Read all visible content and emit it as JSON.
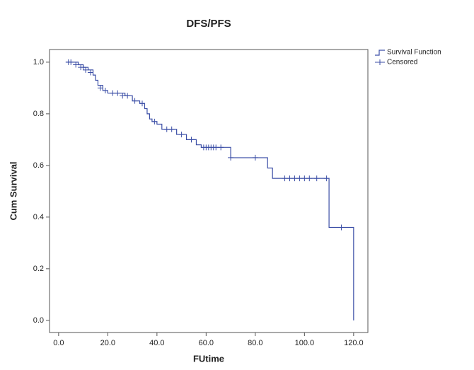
{
  "chart_data": {
    "type": "step",
    "title": "DFS/PFS",
    "x_label": "FUtime",
    "y_label": "Cum Survival",
    "xlim": [
      -3.7,
      125.8
    ],
    "ylim": [
      -0.047,
      1.049
    ],
    "xticks": [
      {
        "value": 0,
        "label": "0.0"
      },
      {
        "value": 20,
        "label": "20.0"
      },
      {
        "value": 40,
        "label": "40.0"
      },
      {
        "value": 60,
        "label": "60.0"
      },
      {
        "value": 80,
        "label": "80.0"
      },
      {
        "value": 100,
        "label": "100.0"
      },
      {
        "value": 120,
        "label": "120.0"
      }
    ],
    "yticks": [
      {
        "value": 0,
        "label": "0.0"
      },
      {
        "value": 0.2,
        "label": "0.2"
      },
      {
        "value": 0.4,
        "label": "0.4"
      },
      {
        "value": 0.6,
        "label": "0.6"
      },
      {
        "value": 0.8,
        "label": "0.8"
      },
      {
        "value": 1.0,
        "label": "1.0"
      }
    ],
    "series": [
      {
        "name": "Survival Function",
        "color": "#3b4ea6",
        "x": [
          3,
          8,
          10,
          12,
          14,
          15,
          16,
          18,
          20,
          27,
          30,
          33,
          35,
          36,
          37,
          38,
          40,
          42,
          48,
          52,
          56,
          58,
          70,
          85,
          87,
          110,
          120
        ],
        "values": [
          1.0,
          0.99,
          0.98,
          0.97,
          0.95,
          0.93,
          0.91,
          0.89,
          0.88,
          0.87,
          0.85,
          0.84,
          0.82,
          0.8,
          0.78,
          0.77,
          0.76,
          0.74,
          0.72,
          0.7,
          0.68,
          0.67,
          0.63,
          0.59,
          0.55,
          0.36,
          0.0
        ]
      },
      {
        "name": "Censored",
        "color": "#3b4ea6",
        "x": [
          4,
          5,
          7,
          9,
          10,
          11,
          13,
          17,
          19,
          22,
          24,
          26,
          28,
          31,
          34,
          39,
          44,
          46,
          50,
          54,
          59,
          60,
          61,
          62,
          63,
          64,
          66,
          70,
          80,
          92,
          94,
          96,
          98,
          100,
          102,
          105,
          109,
          115
        ],
        "values": [
          1.0,
          1.0,
          0.99,
          0.98,
          0.98,
          0.97,
          0.96,
          0.9,
          0.89,
          0.88,
          0.88,
          0.87,
          0.87,
          0.85,
          0.84,
          0.77,
          0.74,
          0.74,
          0.72,
          0.7,
          0.67,
          0.67,
          0.67,
          0.67,
          0.67,
          0.67,
          0.67,
          0.63,
          0.63,
          0.55,
          0.55,
          0.55,
          0.55,
          0.55,
          0.55,
          0.55,
          0.55,
          0.36
        ]
      }
    ]
  }
}
